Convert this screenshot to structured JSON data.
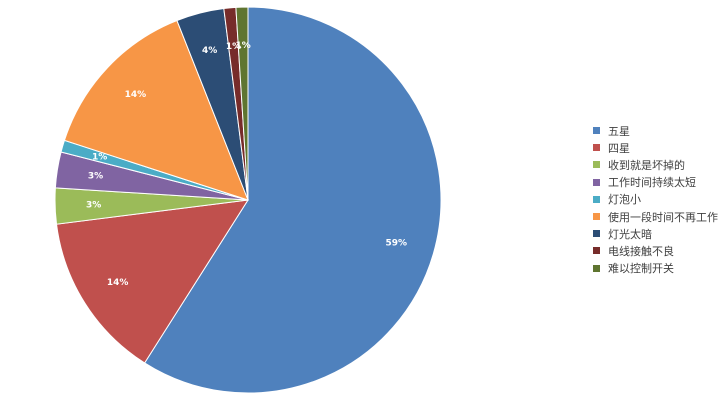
{
  "chart_data": {
    "type": "pie",
    "title": "",
    "legend_position": "right",
    "start_angle_deg": 0,
    "direction": "clockwise",
    "slices": [
      {
        "label": "五星",
        "value": 59,
        "display": "59%",
        "color": "#4f81bd"
      },
      {
        "label": "四星",
        "value": 14,
        "display": "14%",
        "color": "#c0504d"
      },
      {
        "label": "收到就是坏掉的",
        "value": 3,
        "display": "3%",
        "color": "#9bbb59"
      },
      {
        "label": "工作时间持续太短",
        "value": 3,
        "display": "3%",
        "color": "#8064a2"
      },
      {
        "label": "灯泡小",
        "value": 1,
        "display": "1%",
        "color": "#4bacc6"
      },
      {
        "label": "使用一段时间不再工作",
        "value": 14,
        "display": "14%",
        "color": "#f79646"
      },
      {
        "label": "灯光太暗",
        "value": 4,
        "display": "4%",
        "color": "#2c4d75"
      },
      {
        "label": "电线接触不良",
        "value": 1,
        "display": "1%",
        "color": "#772c2a"
      },
      {
        "label": "难以控制开关",
        "value": 1,
        "display": "1%",
        "color": "#5f7530"
      }
    ]
  }
}
